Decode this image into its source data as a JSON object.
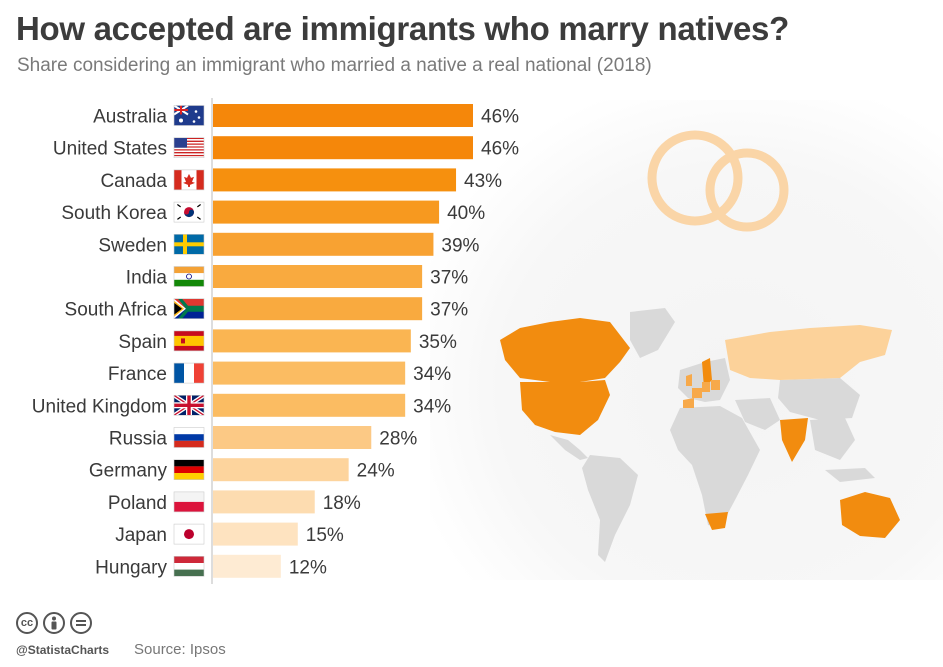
{
  "header": {
    "title": "How accepted are immigrants who marry natives?",
    "subtitle": "Share considering an immigrant who married a native a real national (2018)"
  },
  "chart_data": {
    "type": "bar",
    "orientation": "horizontal",
    "categories": [
      "Australia",
      "United States",
      "Canada",
      "South Korea",
      "Sweden",
      "India",
      "South Africa",
      "Spain",
      "France",
      "United Kingdom",
      "Russia",
      "Germany",
      "Poland",
      "Japan",
      "Hungary"
    ],
    "values": [
      46,
      46,
      43,
      40,
      39,
      37,
      37,
      35,
      34,
      34,
      28,
      24,
      18,
      15,
      12
    ],
    "value_labels": [
      "46%",
      "46%",
      "43%",
      "40%",
      "39%",
      "37%",
      "37%",
      "35%",
      "34%",
      "34%",
      "28%",
      "24%",
      "18%",
      "15%",
      "12%"
    ],
    "unit": "%",
    "colors": [
      "#f5870a",
      "#f5870a",
      "#f6900e",
      "#f7991f",
      "#f8a232",
      "#f9aa3f",
      "#f9aa3f",
      "#fab552",
      "#fbbc62",
      "#fbbc62",
      "#fcc985",
      "#fdd49d",
      "#fddcb0",
      "#fee3c0",
      "#feebd3"
    ],
    "flag_icons": [
      "australia-flag-icon",
      "usa-flag-icon",
      "canada-flag-icon",
      "south-korea-flag-icon",
      "sweden-flag-icon",
      "india-flag-icon",
      "south-africa-flag-icon",
      "spain-flag-icon",
      "france-flag-icon",
      "uk-flag-icon",
      "russia-flag-icon",
      "germany-flag-icon",
      "poland-flag-icon",
      "japan-flag-icon",
      "hungary-flag-icon"
    ],
    "xlim": [
      0,
      46
    ],
    "grid": false,
    "legend": "none"
  },
  "footer": {
    "handle": "@StatistaCharts",
    "source": "Source: Ipsos",
    "license_icons": [
      "cc-icon",
      "attribution-icon",
      "no-derivatives-icon"
    ]
  },
  "decor": {
    "rings_icon": "wedding-rings-icon",
    "map_icon": "world-map-icon",
    "ring_color": "#fad5a7",
    "map_land_color": "#d9d9d9"
  }
}
